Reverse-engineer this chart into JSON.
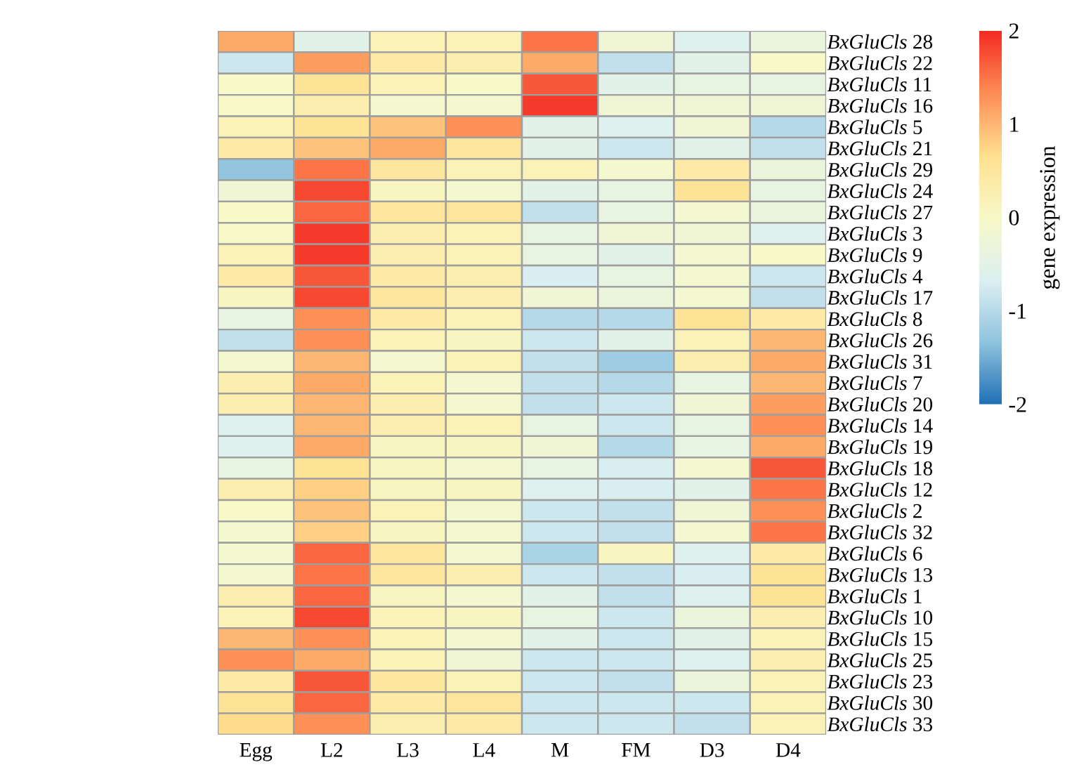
{
  "chart_data": {
    "type": "heatmap",
    "clabel": "gene expression",
    "categories": [
      "Egg",
      "L2",
      "L3",
      "L4",
      "M",
      "FM",
      "D3",
      "D4"
    ],
    "y_categories": [
      "*BxGluCls* 28",
      "*BxGluCls* 22",
      "*BxGluCls* 11",
      "*BxGluCls* 16",
      "*BxGluCls* 5",
      "*BxGluCls* 21",
      "*BxGluCls* 29",
      "*BxGluCls* 24",
      "*BxGluCls* 27",
      "*BxGluCls* 3",
      "*BxGluCls* 9",
      "*BxGluCls* 4",
      "*BxGluCls* 17",
      "*BxGluCls* 8",
      "*BxGluCls* 26",
      "*BxGluCls* 31",
      "*BxGluCls* 7",
      "*BxGluCls* 20",
      "*BxGluCls* 14",
      "*BxGluCls* 19",
      "*BxGluCls* 18",
      "*BxGluCls* 12",
      "*BxGluCls* 2",
      "*BxGluCls* 32",
      "*BxGluCls* 6",
      "*BxGluCls* 13",
      "*BxGluCls* 1",
      "*BxGluCls* 10",
      "*BxGluCls* 15",
      "*BxGluCls* 25",
      "*BxGluCls* 23",
      "*BxGluCls* 30",
      "*BxGluCls* 33"
    ],
    "cells": [
      [
        1.1,
        -0.5,
        0.2,
        0.2,
        1.5,
        -0.2,
        -0.6,
        -0.3
      ],
      [
        -0.8,
        1.2,
        0.4,
        0.3,
        1.1,
        -0.9,
        -0.5,
        0
      ],
      [
        0,
        0.6,
        0.2,
        0,
        1.7,
        -0.5,
        -0.4,
        -0.4
      ],
      [
        0,
        0.3,
        -0.1,
        -0.1,
        1.9,
        -0.2,
        -0.2,
        -0.2
      ],
      [
        0.2,
        0.6,
        0.9,
        1.3,
        -0.5,
        -0.6,
        -0.2,
        -1.0
      ],
      [
        0.4,
        0.9,
        1.1,
        0.5,
        -0.5,
        -0.8,
        -0.5,
        -0.9
      ],
      [
        -1.3,
        1.5,
        0.5,
        0.2,
        0.2,
        -0.1,
        0.4,
        -0.3
      ],
      [
        -0.2,
        1.8,
        0.1,
        -0.1,
        -0.5,
        -0.4,
        0.6,
        -0.4
      ],
      [
        0,
        1.6,
        0.5,
        0.5,
        -0.9,
        -0.4,
        -0.1,
        -0.3
      ],
      [
        0,
        1.9,
        0.3,
        0.2,
        -0.4,
        -0.2,
        -0.2,
        -0.6
      ],
      [
        0.2,
        1.9,
        0.3,
        0.2,
        -0.4,
        -0.5,
        -0.1,
        0
      ],
      [
        0.4,
        1.7,
        0.4,
        0.3,
        -0.7,
        -0.4,
        -0.1,
        -0.8
      ],
      [
        0.1,
        1.8,
        0.5,
        0.3,
        -0.2,
        -0.3,
        -0.1,
        -0.9
      ],
      [
        -0.4,
        1.3,
        0.4,
        0.2,
        -1.0,
        -1.0,
        0.6,
        0.4
      ],
      [
        -0.9,
        1.3,
        0.2,
        0.1,
        -0.8,
        -0.5,
        0.2,
        1.0
      ],
      [
        -0.1,
        1.0,
        -0.1,
        0.2,
        -0.9,
        -1.2,
        0.3,
        1.1
      ],
      [
        0.3,
        1.1,
        0.2,
        -0.1,
        -0.9,
        -1.0,
        -0.4,
        1.0
      ],
      [
        0.3,
        1.0,
        0.3,
        -0.1,
        -0.9,
        -0.8,
        -0.2,
        1.2
      ],
      [
        -0.6,
        1.0,
        0.3,
        0.2,
        -0.4,
        -0.8,
        -0.4,
        1.3
      ],
      [
        -0.6,
        1.1,
        0.1,
        0.1,
        -0.2,
        -1.0,
        -0.4,
        1.1
      ],
      [
        -0.4,
        0.6,
        0.1,
        -0.1,
        -0.4,
        -0.7,
        -0.1,
        1.7
      ],
      [
        0.3,
        0.8,
        0.1,
        0.1,
        -0.6,
        -0.7,
        -0.5,
        1.5
      ],
      [
        0,
        0.9,
        0.2,
        -0.1,
        -0.8,
        -0.9,
        -0.2,
        1.3
      ],
      [
        -0.1,
        0.8,
        0.1,
        -0.1,
        -0.8,
        -0.9,
        -0.1,
        1.5
      ],
      [
        -0.1,
        1.6,
        0.5,
        -0.1,
        -1.1,
        0.1,
        -0.6,
        0.4
      ],
      [
        -0.1,
        1.5,
        0.5,
        0.3,
        -0.8,
        -0.9,
        -0.7,
        0.6
      ],
      [
        0.3,
        1.6,
        0.1,
        -0.1,
        -0.5,
        -0.9,
        -0.6,
        0.6
      ],
      [
        0.2,
        1.8,
        0.2,
        0.1,
        -0.4,
        -0.8,
        -0.3,
        0.3
      ],
      [
        1.0,
        1.3,
        0.2,
        -0.1,
        -0.5,
        -0.8,
        -0.5,
        0.2
      ],
      [
        1.3,
        1.1,
        0.2,
        -0.2,
        -0.8,
        -0.8,
        -0.6,
        0.3
      ],
      [
        0.4,
        1.7,
        0.5,
        0.2,
        -0.8,
        -0.9,
        -0.3,
        0.2
      ],
      [
        0.6,
        1.6,
        0.4,
        0.5,
        -0.8,
        -0.8,
        -0.8,
        0.2
      ],
      [
        0.7,
        1.3,
        0.3,
        0.4,
        -0.8,
        -0.8,
        -0.9,
        0.2
      ]
    ],
    "clim": [
      -2,
      2
    ],
    "cticks": [
      -2,
      -1,
      0,
      1,
      2
    ]
  }
}
